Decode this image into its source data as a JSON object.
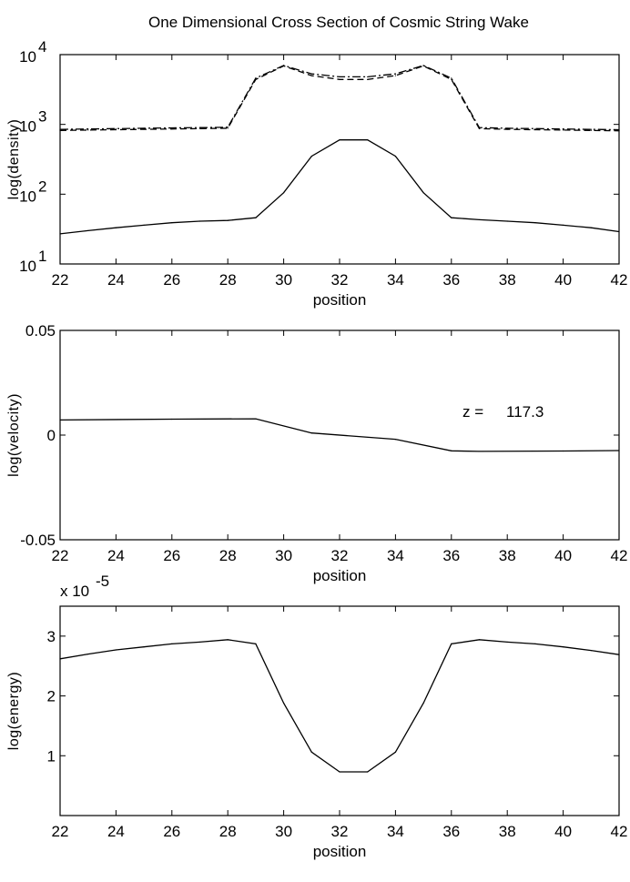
{
  "figure_title": "One Dimensional Cross Section of Cosmic String Wake",
  "annotation": {
    "label": "z =",
    "value": "117.3"
  },
  "chart_data": [
    {
      "type": "line",
      "title": "One Dimensional Cross Section of Cosmic String Wake",
      "xlabel": "position",
      "ylabel": "log(density)",
      "xlim": [
        22,
        42
      ],
      "ylim": [
        10,
        10000
      ],
      "yscale": "log",
      "x_ticks": [
        "22",
        "24",
        "26",
        "28",
        "30",
        "32",
        "34",
        "36",
        "38",
        "40",
        "42"
      ],
      "y_ticks": [
        {
          "value": 10,
          "base": "10",
          "exp": "1"
        },
        {
          "value": 100,
          "base": "10",
          "exp": "2"
        },
        {
          "value": 1000,
          "base": "10",
          "exp": "3"
        },
        {
          "value": 10000,
          "base": "10",
          "exp": "4"
        }
      ],
      "x": [
        22,
        23,
        24,
        25,
        26,
        27,
        28,
        29,
        30,
        31,
        32,
        33,
        34,
        35,
        36,
        37,
        38,
        39,
        40,
        41,
        42
      ],
      "series": [
        {
          "style": "solid",
          "values": [
            27,
            30,
            33,
            36,
            39,
            41,
            42,
            46,
            105,
            350,
            600,
            600,
            350,
            105,
            46,
            43,
            41,
            39,
            36,
            33,
            29
          ]
        },
        {
          "style": "dash-dot",
          "values": [
            850,
            860,
            870,
            880,
            890,
            900,
            910,
            4600,
            7000,
            5300,
            4800,
            4800,
            5300,
            7000,
            4600,
            900,
            880,
            870,
            860,
            850,
            840
          ]
        },
        {
          "style": "dashed",
          "values": [
            820,
            830,
            840,
            850,
            860,
            870,
            880,
            4400,
            6900,
            5000,
            4400,
            4400,
            5000,
            6900,
            4400,
            870,
            850,
            840,
            830,
            820,
            810
          ]
        }
      ]
    },
    {
      "type": "line",
      "xlabel": "position",
      "ylabel": "log(velocity)",
      "xlim": [
        22,
        42
      ],
      "ylim": [
        -0.05,
        0.05
      ],
      "x_ticks": [
        "22",
        "24",
        "26",
        "28",
        "30",
        "32",
        "34",
        "36",
        "38",
        "40",
        "42"
      ],
      "y_ticks": [
        {
          "value": 0.05,
          "label": "0.05"
        },
        {
          "value": 0,
          "label": "0"
        },
        {
          "value": -0.05,
          "label": "-0.05"
        }
      ],
      "x": [
        22,
        26,
        29,
        31,
        34,
        36,
        37,
        40,
        42
      ],
      "series": [
        {
          "style": "solid",
          "values": [
            0.0072,
            0.0076,
            0.0078,
            0.001,
            -0.002,
            -0.0075,
            -0.0078,
            -0.0076,
            -0.0074
          ]
        }
      ]
    },
    {
      "type": "line",
      "xlabel": "position",
      "ylabel": "log(energy)",
      "xlim": [
        22,
        42
      ],
      "ylim": [
        0,
        3.5
      ],
      "y_multiplier": {
        "base": "x 10",
        "exp": "-5"
      },
      "x_ticks": [
        "22",
        "24",
        "26",
        "28",
        "30",
        "32",
        "34",
        "36",
        "38",
        "40",
        "42"
      ],
      "y_ticks": [
        {
          "value": 1,
          "label": "1"
        },
        {
          "value": 2,
          "label": "2"
        },
        {
          "value": 3,
          "label": "3"
        }
      ],
      "x": [
        22,
        23,
        24,
        25,
        26,
        27,
        28,
        29,
        30,
        31,
        32,
        33,
        34,
        35,
        36,
        37,
        38,
        39,
        40,
        41,
        42
      ],
      "series": [
        {
          "style": "solid",
          "values": [
            2.62,
            2.7,
            2.77,
            2.82,
            2.87,
            2.9,
            2.94,
            2.87,
            1.88,
            1.06,
            0.73,
            0.73,
            1.06,
            1.88,
            2.87,
            2.94,
            2.9,
            2.87,
            2.82,
            2.76,
            2.69
          ]
        }
      ]
    }
  ]
}
